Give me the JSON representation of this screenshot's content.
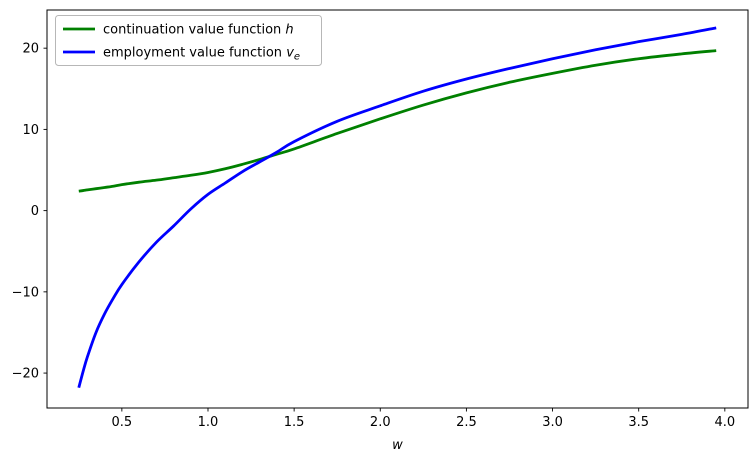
{
  "figure": {
    "background": "#ffffff",
    "axis_color": "#000000"
  },
  "chart_data": {
    "type": "line",
    "title": "",
    "xlabel": "w",
    "ylabel": "",
    "grid": false,
    "xlim": [
      0.0655,
      4.1345
    ],
    "ylim": [
      -24.3,
      24.7
    ],
    "x": [
      0.25,
      0.275,
      0.3,
      0.35,
      0.4,
      0.45,
      0.5,
      0.6,
      0.7,
      0.8,
      0.9,
      1.0,
      1.1,
      1.2,
      1.3,
      1.4,
      1.5,
      1.75,
      2.0,
      2.25,
      2.5,
      2.75,
      3.0,
      3.25,
      3.5,
      3.75,
      3.95
    ],
    "series": [
      {
        "name": "continuation value function h",
        "legend_prefix": "continuation value function ",
        "legend_symbol": "h",
        "legend_subscript": "",
        "color": "#008000",
        "line_width": 2.8,
        "values": [
          2.4,
          2.47,
          2.55,
          2.7,
          2.85,
          3.0,
          3.2,
          3.5,
          3.75,
          4.05,
          4.35,
          4.7,
          5.15,
          5.7,
          6.3,
          6.95,
          7.6,
          9.5,
          11.3,
          13.0,
          14.5,
          15.8,
          16.9,
          17.9,
          18.7,
          19.3,
          19.7
        ]
      },
      {
        "name": "employment value function v_e",
        "legend_prefix": "employment value function ",
        "legend_symbol": "v",
        "legend_subscript": "e",
        "color": "#0000ff",
        "line_width": 2.8,
        "values": [
          -21.8,
          -19.8,
          -18.0,
          -15.0,
          -12.7,
          -10.8,
          -9.1,
          -6.3,
          -3.9,
          -1.9,
          0.2,
          2.0,
          3.4,
          4.8,
          6.0,
          7.2,
          8.5,
          11.0,
          12.9,
          14.7,
          16.2,
          17.5,
          18.7,
          19.8,
          20.8,
          21.7,
          22.5
        ]
      }
    ],
    "xticks": {
      "values": [
        0.5,
        1.0,
        1.5,
        2.0,
        2.5,
        3.0,
        3.5,
        4.0
      ],
      "labels": [
        "0.5",
        "1.0",
        "1.5",
        "2.0",
        "2.5",
        "3.0",
        "3.5",
        "4.0"
      ]
    },
    "yticks": {
      "values": [
        -20,
        -10,
        0,
        10,
        20
      ],
      "labels": [
        "−20",
        "−10",
        "0",
        "10",
        "20"
      ]
    },
    "legend": {
      "position": "upper-left",
      "background": "#ffffff",
      "border_color": "#b7b7b7"
    }
  }
}
